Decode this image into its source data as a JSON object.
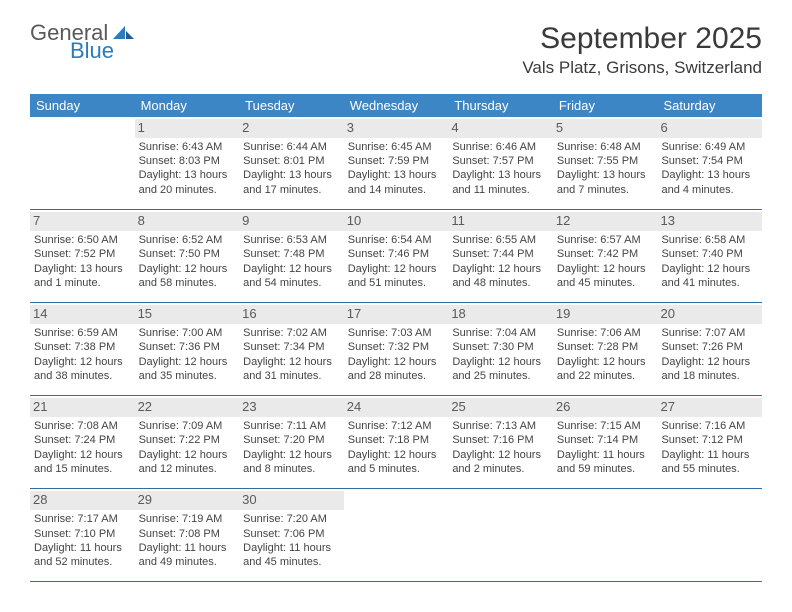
{
  "logo": {
    "word1": "General",
    "word2": "Blue"
  },
  "title": {
    "month": "September 2025",
    "location": "Vals Platz, Grisons, Switzerland"
  },
  "colors": {
    "header_bg": "#3d86c6",
    "header_text": "#ffffff",
    "daynum_bg": "#eaeaea",
    "rule": "#2f6da8",
    "body_text": "#444444",
    "title_text": "#3a3a3a",
    "logo_gray": "#5a5a5a",
    "logo_blue": "#2b7bbf",
    "background": "#ffffff"
  },
  "fonts": {
    "month_title_pt": 30,
    "location_pt": 17,
    "dayhead_pt": 13,
    "daynum_pt": 13,
    "cell_pt": 11
  },
  "day_headers": [
    "Sunday",
    "Monday",
    "Tuesday",
    "Wednesday",
    "Thursday",
    "Friday",
    "Saturday"
  ],
  "weeks": [
    [
      {
        "n": "",
        "sunrise": "",
        "sunset": "",
        "daylight": ""
      },
      {
        "n": "1",
        "sunrise": "Sunrise: 6:43 AM",
        "sunset": "Sunset: 8:03 PM",
        "daylight": "Daylight: 13 hours and 20 minutes."
      },
      {
        "n": "2",
        "sunrise": "Sunrise: 6:44 AM",
        "sunset": "Sunset: 8:01 PM",
        "daylight": "Daylight: 13 hours and 17 minutes."
      },
      {
        "n": "3",
        "sunrise": "Sunrise: 6:45 AM",
        "sunset": "Sunset: 7:59 PM",
        "daylight": "Daylight: 13 hours and 14 minutes."
      },
      {
        "n": "4",
        "sunrise": "Sunrise: 6:46 AM",
        "sunset": "Sunset: 7:57 PM",
        "daylight": "Daylight: 13 hours and 11 minutes."
      },
      {
        "n": "5",
        "sunrise": "Sunrise: 6:48 AM",
        "sunset": "Sunset: 7:55 PM",
        "daylight": "Daylight: 13 hours and 7 minutes."
      },
      {
        "n": "6",
        "sunrise": "Sunrise: 6:49 AM",
        "sunset": "Sunset: 7:54 PM",
        "daylight": "Daylight: 13 hours and 4 minutes."
      }
    ],
    [
      {
        "n": "7",
        "sunrise": "Sunrise: 6:50 AM",
        "sunset": "Sunset: 7:52 PM",
        "daylight": "Daylight: 13 hours and 1 minute."
      },
      {
        "n": "8",
        "sunrise": "Sunrise: 6:52 AM",
        "sunset": "Sunset: 7:50 PM",
        "daylight": "Daylight: 12 hours and 58 minutes."
      },
      {
        "n": "9",
        "sunrise": "Sunrise: 6:53 AM",
        "sunset": "Sunset: 7:48 PM",
        "daylight": "Daylight: 12 hours and 54 minutes."
      },
      {
        "n": "10",
        "sunrise": "Sunrise: 6:54 AM",
        "sunset": "Sunset: 7:46 PM",
        "daylight": "Daylight: 12 hours and 51 minutes."
      },
      {
        "n": "11",
        "sunrise": "Sunrise: 6:55 AM",
        "sunset": "Sunset: 7:44 PM",
        "daylight": "Daylight: 12 hours and 48 minutes."
      },
      {
        "n": "12",
        "sunrise": "Sunrise: 6:57 AM",
        "sunset": "Sunset: 7:42 PM",
        "daylight": "Daylight: 12 hours and 45 minutes."
      },
      {
        "n": "13",
        "sunrise": "Sunrise: 6:58 AM",
        "sunset": "Sunset: 7:40 PM",
        "daylight": "Daylight: 12 hours and 41 minutes."
      }
    ],
    [
      {
        "n": "14",
        "sunrise": "Sunrise: 6:59 AM",
        "sunset": "Sunset: 7:38 PM",
        "daylight": "Daylight: 12 hours and 38 minutes."
      },
      {
        "n": "15",
        "sunrise": "Sunrise: 7:00 AM",
        "sunset": "Sunset: 7:36 PM",
        "daylight": "Daylight: 12 hours and 35 minutes."
      },
      {
        "n": "16",
        "sunrise": "Sunrise: 7:02 AM",
        "sunset": "Sunset: 7:34 PM",
        "daylight": "Daylight: 12 hours and 31 minutes."
      },
      {
        "n": "17",
        "sunrise": "Sunrise: 7:03 AM",
        "sunset": "Sunset: 7:32 PM",
        "daylight": "Daylight: 12 hours and 28 minutes."
      },
      {
        "n": "18",
        "sunrise": "Sunrise: 7:04 AM",
        "sunset": "Sunset: 7:30 PM",
        "daylight": "Daylight: 12 hours and 25 minutes."
      },
      {
        "n": "19",
        "sunrise": "Sunrise: 7:06 AM",
        "sunset": "Sunset: 7:28 PM",
        "daylight": "Daylight: 12 hours and 22 minutes."
      },
      {
        "n": "20",
        "sunrise": "Sunrise: 7:07 AM",
        "sunset": "Sunset: 7:26 PM",
        "daylight": "Daylight: 12 hours and 18 minutes."
      }
    ],
    [
      {
        "n": "21",
        "sunrise": "Sunrise: 7:08 AM",
        "sunset": "Sunset: 7:24 PM",
        "daylight": "Daylight: 12 hours and 15 minutes."
      },
      {
        "n": "22",
        "sunrise": "Sunrise: 7:09 AM",
        "sunset": "Sunset: 7:22 PM",
        "daylight": "Daylight: 12 hours and 12 minutes."
      },
      {
        "n": "23",
        "sunrise": "Sunrise: 7:11 AM",
        "sunset": "Sunset: 7:20 PM",
        "daylight": "Daylight: 12 hours and 8 minutes."
      },
      {
        "n": "24",
        "sunrise": "Sunrise: 7:12 AM",
        "sunset": "Sunset: 7:18 PM",
        "daylight": "Daylight: 12 hours and 5 minutes."
      },
      {
        "n": "25",
        "sunrise": "Sunrise: 7:13 AM",
        "sunset": "Sunset: 7:16 PM",
        "daylight": "Daylight: 12 hours and 2 minutes."
      },
      {
        "n": "26",
        "sunrise": "Sunrise: 7:15 AM",
        "sunset": "Sunset: 7:14 PM",
        "daylight": "Daylight: 11 hours and 59 minutes."
      },
      {
        "n": "27",
        "sunrise": "Sunrise: 7:16 AM",
        "sunset": "Sunset: 7:12 PM",
        "daylight": "Daylight: 11 hours and 55 minutes."
      }
    ],
    [
      {
        "n": "28",
        "sunrise": "Sunrise: 7:17 AM",
        "sunset": "Sunset: 7:10 PM",
        "daylight": "Daylight: 11 hours and 52 minutes."
      },
      {
        "n": "29",
        "sunrise": "Sunrise: 7:19 AM",
        "sunset": "Sunset: 7:08 PM",
        "daylight": "Daylight: 11 hours and 49 minutes."
      },
      {
        "n": "30",
        "sunrise": "Sunrise: 7:20 AM",
        "sunset": "Sunset: 7:06 PM",
        "daylight": "Daylight: 11 hours and 45 minutes."
      },
      {
        "n": "",
        "sunrise": "",
        "sunset": "",
        "daylight": ""
      },
      {
        "n": "",
        "sunrise": "",
        "sunset": "",
        "daylight": ""
      },
      {
        "n": "",
        "sunrise": "",
        "sunset": "",
        "daylight": ""
      },
      {
        "n": "",
        "sunrise": "",
        "sunset": "",
        "daylight": ""
      }
    ]
  ]
}
